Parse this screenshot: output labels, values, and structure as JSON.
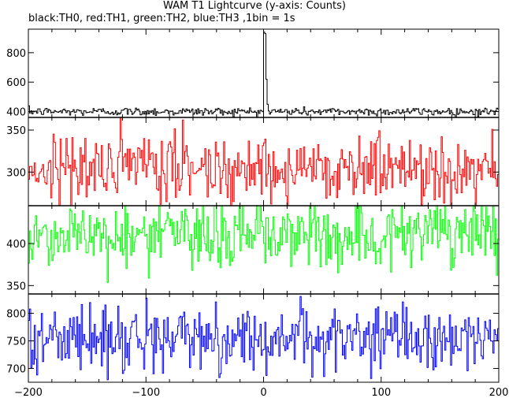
{
  "title": "WAM T1 Lightcurve (y-axis: Counts)",
  "subtitle": "black:TH0, red:TH1, green:TH2, blue:TH3 ,1bin = 1s",
  "chart_data": {
    "type": "line",
    "title": "WAM T1 Lightcurve (y-axis: Counts)",
    "subtitle": "black:TH0, red:TH1, green:TH2, blue:TH3 ,1bin = 1s",
    "bin_seconds": 1,
    "x": {
      "range": [
        -200,
        200
      ],
      "ticks": [
        -200,
        -100,
        0,
        100,
        200
      ]
    },
    "panels": [
      {
        "name": "TH0",
        "color": "#000000",
        "ylim": [
          360,
          960
        ],
        "yticks": [
          400,
          600,
          800
        ],
        "baseline": 400,
        "noise": 14,
        "features": [
          {
            "x": 0,
            "peak": 940
          },
          {
            "x": 1,
            "peak": 930
          },
          {
            "x": 2,
            "peak": 620
          },
          {
            "x": 3,
            "peak": 450
          }
        ]
      },
      {
        "name": "TH1",
        "color": "#ff0000",
        "ylim": [
          260,
          365
        ],
        "yticks": [
          300,
          350
        ],
        "baseline": 305,
        "noise": 20,
        "features": []
      },
      {
        "name": "TH2",
        "color": "#00ff00",
        "ylim": [
          340,
          445
        ],
        "yticks": [
          350,
          400
        ],
        "baseline": 410,
        "noise": 20,
        "features": []
      },
      {
        "name": "TH3",
        "color": "#0000ff",
        "ylim": [
          675,
          835
        ],
        "yticks": [
          700,
          750,
          800
        ],
        "baseline": 755,
        "noise": 28,
        "features": []
      }
    ]
  }
}
